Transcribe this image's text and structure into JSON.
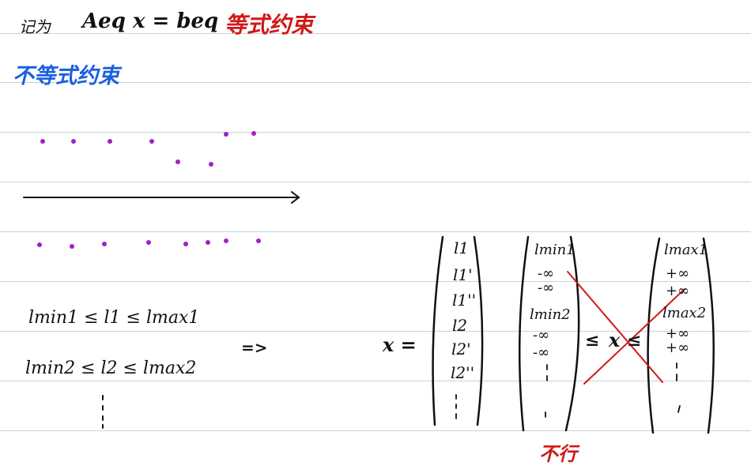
{
  "header": {
    "prefix": "记为",
    "equation": "Aeq x = beq",
    "eq_label": "等式约束"
  },
  "section": {
    "title": "不等式约束"
  },
  "arrow_label": "",
  "inequalities": {
    "row1": "lmin1 ≤ l1 ≤ lmax1",
    "row2": "lmin2 ≤ l2 ≤ lmax2",
    "implies": "=>"
  },
  "matrix": {
    "lhs": "x =",
    "col1": [
      "l1",
      "l1'",
      "l1''",
      "l2",
      "l2'",
      "l2''"
    ],
    "col2": [
      "lmin1",
      "-∞",
      "-∞",
      "lmin2",
      "-∞",
      "-∞"
    ],
    "leq": "≤",
    "mid": "x",
    "leq2": "≤",
    "col3": [
      "lmax1",
      "+∞",
      "+∞",
      "lmax2",
      "+∞",
      "+∞"
    ],
    "crossed_note": "不行"
  },
  "colors": {
    "ink": "#111111",
    "red": "#d01818",
    "blue": "#1a5fe0",
    "dots": "#a020c8",
    "rule": "#c9d1dc"
  }
}
